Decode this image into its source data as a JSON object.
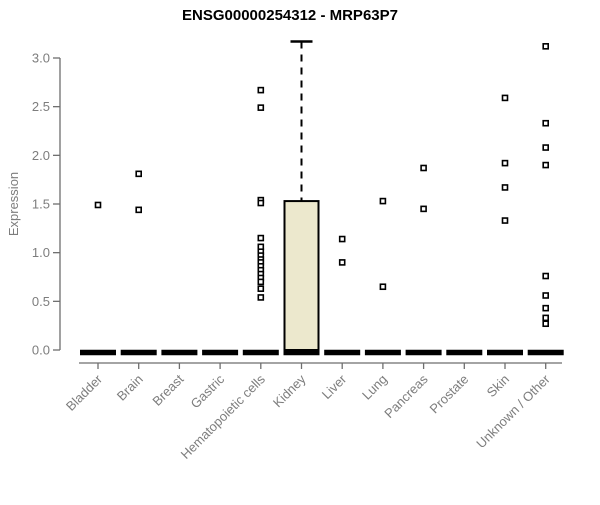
{
  "chart_data": {
    "type": "boxplot",
    "title": "ENSG00000254312 - MRP63P7",
    "ylabel": "Expression",
    "xlabel": "",
    "ylim": [
      0,
      3.2
    ],
    "yticks": [
      "0.0",
      "0.5",
      "1.0",
      "1.5",
      "2.0",
      "2.5",
      "3.0"
    ],
    "grid": false,
    "legend_position": "none",
    "categories": [
      "Bladder",
      "Brain",
      "Breast",
      "Gastric",
      "Hematopoietic cells",
      "Kidney",
      "Liver",
      "Lung",
      "Pancreas",
      "Prostate",
      "Skin",
      "Unknown / Other"
    ],
    "boxes": [
      {
        "category": "Bladder",
        "q1": 0,
        "median": 0,
        "q3": 0,
        "whisker_low": 0,
        "whisker_high": 0,
        "outliers": [
          1.49
        ]
      },
      {
        "category": "Brain",
        "q1": 0,
        "median": 0,
        "q3": 0,
        "whisker_low": 0,
        "whisker_high": 0,
        "outliers": [
          1.81,
          1.44
        ]
      },
      {
        "category": "Breast",
        "q1": 0,
        "median": 0,
        "q3": 0,
        "whisker_low": 0,
        "whisker_high": 0,
        "outliers": []
      },
      {
        "category": "Gastric",
        "q1": 0,
        "median": 0,
        "q3": 0,
        "whisker_low": 0,
        "whisker_high": 0,
        "outliers": []
      },
      {
        "category": "Hematopoietic cells",
        "q1": 0,
        "median": 0,
        "q3": 0,
        "whisker_low": 0,
        "whisker_high": 0,
        "outliers": [
          2.67,
          2.49,
          1.54,
          1.51,
          1.15,
          1.06,
          1.01,
          0.97,
          0.93,
          0.9,
          0.86,
          0.82,
          0.78,
          0.74,
          0.7,
          0.63,
          0.54
        ]
      },
      {
        "category": "Kidney",
        "q1": 0,
        "median": 0,
        "q3": 1.53,
        "whisker_low": 0,
        "whisker_high": 3.17,
        "outliers": []
      },
      {
        "category": "Liver",
        "q1": 0,
        "median": 0,
        "q3": 0,
        "whisker_low": 0,
        "whisker_high": 0,
        "outliers": [
          1.14,
          0.9
        ]
      },
      {
        "category": "Lung",
        "q1": 0,
        "median": 0,
        "q3": 0,
        "whisker_low": 0,
        "whisker_high": 0,
        "outliers": [
          1.53,
          0.65
        ]
      },
      {
        "category": "Pancreas",
        "q1": 0,
        "median": 0,
        "q3": 0,
        "whisker_low": 0,
        "whisker_high": 0,
        "outliers": [
          1.87,
          1.45
        ]
      },
      {
        "category": "Prostate",
        "q1": 0,
        "median": 0,
        "q3": 0,
        "whisker_low": 0,
        "whisker_high": 0,
        "outliers": []
      },
      {
        "category": "Skin",
        "q1": 0,
        "median": 0,
        "q3": 0,
        "whisker_low": 0,
        "whisker_high": 0,
        "outliers": [
          2.59,
          1.92,
          1.67,
          1.33
        ]
      },
      {
        "category": "Unknown / Other",
        "q1": 0,
        "median": 0,
        "q3": 0,
        "whisker_low": 0,
        "whisker_high": 0,
        "outliers": [
          3.12,
          2.33,
          2.08,
          1.9,
          0.76,
          0.56,
          0.43,
          0.33,
          0.27
        ]
      }
    ],
    "colors": {
      "box_fill": "#ece8cd",
      "box_border": "#000000",
      "flat_box": "#000000",
      "axis": "#6e6e6e",
      "tick_label": "#7d7d7d",
      "title": "#000000",
      "outlier_fill": "#ffffff",
      "outlier_border": "#000000",
      "background": "#ffffff"
    }
  }
}
